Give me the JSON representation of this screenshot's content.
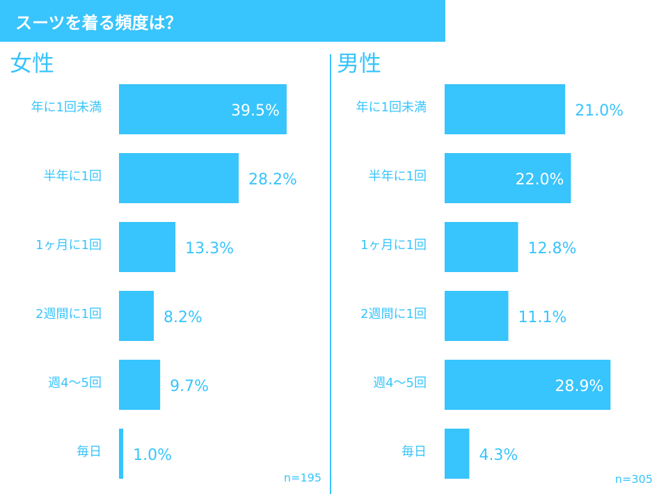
{
  "title": "スーツを着る頻度は？",
  "accent_color": "#38c4fc",
  "chart_data": [
    {
      "type": "bar",
      "orientation": "horizontal",
      "panel_title": "女性",
      "sample_size": "n=195",
      "categories": [
        "年に1回未満",
        "半年に1回",
        "1ヶ月に1回",
        "2週間に1回",
        "週4～5回",
        "毎日"
      ],
      "values": [
        39.5,
        28.2,
        13.3,
        8.2,
        9.7,
        1.0
      ],
      "value_labels": [
        "39.5%",
        "28.2%",
        "13.3%",
        "8.2%",
        "9.7%",
        "1.0%"
      ],
      "unit": "%",
      "xlim": [
        0,
        50
      ],
      "grid": false,
      "legend": "none"
    },
    {
      "type": "bar",
      "orientation": "horizontal",
      "panel_title": "男性",
      "sample_size": "n=305",
      "categories": [
        "年に1回未満",
        "半年に1回",
        "1ヶ月に1回",
        "2週間に1回",
        "週4～5回",
        "毎日"
      ],
      "values": [
        21.0,
        22.0,
        12.8,
        11.1,
        28.9,
        4.3
      ],
      "value_labels": [
        "21.0%",
        "22.0%",
        "12.8%",
        "11.1%",
        "28.9%",
        "4.3%"
      ],
      "unit": "%",
      "xlim": [
        0,
        40
      ],
      "grid": false,
      "legend": "none"
    }
  ]
}
